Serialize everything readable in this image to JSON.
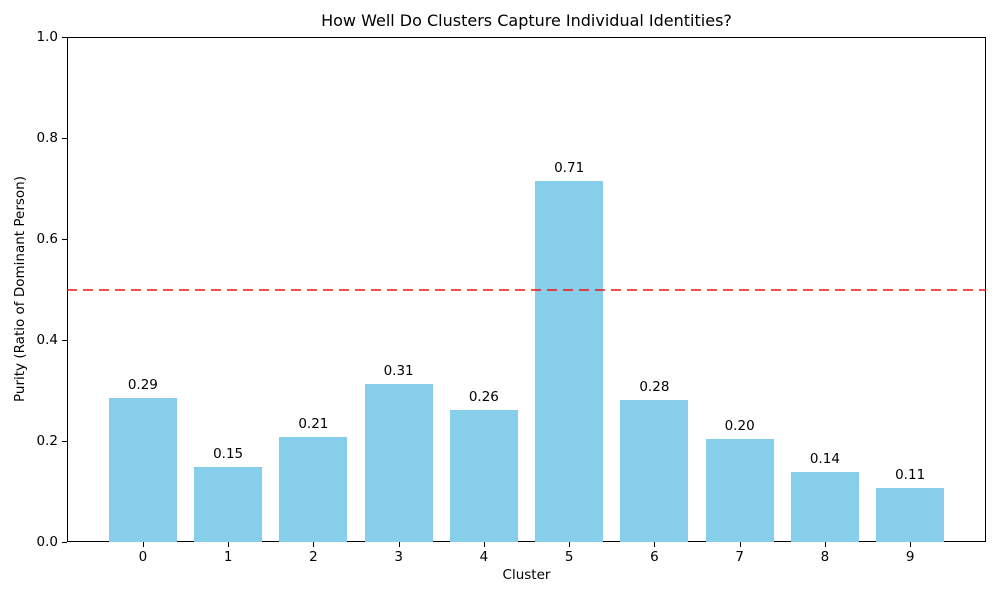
{
  "chart_data": {
    "type": "bar",
    "title": "How Well Do Clusters Capture Individual Identities?",
    "xlabel": "Cluster",
    "ylabel": "Purity (Ratio of Dominant Person)",
    "categories": [
      "0",
      "1",
      "2",
      "3",
      "4",
      "5",
      "6",
      "7",
      "8",
      "9"
    ],
    "values": [
      0.285,
      0.149,
      0.207,
      0.313,
      0.262,
      0.715,
      0.281,
      0.203,
      0.138,
      0.107
    ],
    "bar_value_labels": [
      "0.29",
      "0.15",
      "0.21",
      "0.31",
      "0.26",
      "0.71",
      "0.28",
      "0.20",
      "0.14",
      "0.11"
    ],
    "ylim": [
      0.0,
      1.0
    ],
    "ytick_labels": [
      "0.0",
      "0.2",
      "0.4",
      "0.6",
      "0.8",
      "1.0"
    ],
    "grid": false,
    "legend": null,
    "bar_color": "#87CEEB",
    "background_color": "#ffffff",
    "reference_line": {
      "y": 0.5,
      "color": "#ff0000",
      "alpha": 0.7,
      "style": "dashed"
    }
  }
}
